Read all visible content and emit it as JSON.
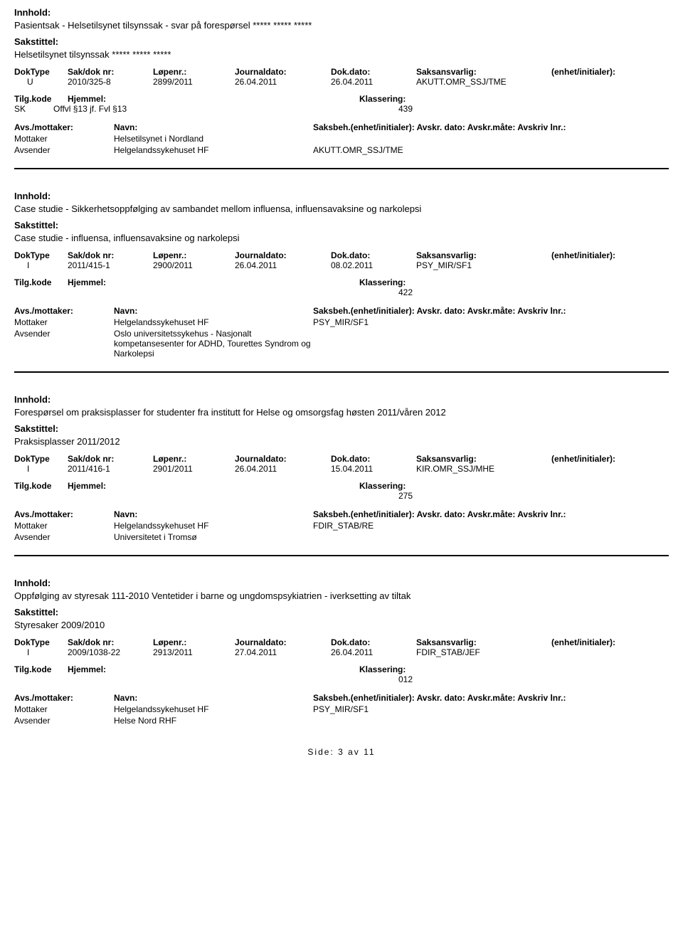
{
  "labels": {
    "innhold": "Innhold:",
    "sakstittel": "Sakstittel:",
    "doktype": "DokType",
    "sakdoknr": "Sak/dok nr:",
    "lopenr": "Løpenr.:",
    "journaldato": "Journaldato:",
    "dokdato": "Dok.dato:",
    "saksansvarlig": "Saksansvarlig:",
    "enhet": "(enhet/initialer):",
    "tilgkode": "Tilg.kode",
    "hjemmel": "Hjemmel:",
    "klassering": "Klassering:",
    "avsmottaker": "Avs./mottaker:",
    "navn": "Navn:",
    "saksbeh": "Saksbeh.(enhet/initialer): Avskr. dato:  Avskr.måte:  Avskriv lnr.:"
  },
  "records": [
    {
      "content": "Pasientsak - Helsetilsynet tilsynssak - svar på forespørsel ***** ***** *****",
      "title": "Helsetilsynet tilsynssak ***** ***** *****",
      "doktype": "U",
      "sak": "2010/325-8",
      "lopenr": "2899/2011",
      "journal": "26.04.2011",
      "dokdato": "26.04.2011",
      "saksans": "AKUTT.OMR_SSJ/TME",
      "tilgkode": "SK",
      "hjemmel": "Offvl §13 jf. Fvl §13",
      "klass": "439",
      "parties": [
        {
          "role": "Mottaker",
          "name": "Helsetilsynet i Nordland",
          "right": ""
        },
        {
          "role": "Avsender",
          "name": "Helgelandssykehuset HF",
          "right": "AKUTT.OMR_SSJ/TME"
        }
      ]
    },
    {
      "content": "Case studie - Sikkerhetsoppfølging av sambandet mellom influensa, influensavaksine og narkolepsi",
      "title": "Case studie - influensa, influensavaksine og narkolepsi",
      "doktype": "I",
      "sak": "2011/415-1",
      "lopenr": "2900/2011",
      "journal": "26.04.2011",
      "dokdato": "08.02.2011",
      "saksans": "PSY_MIR/SF1",
      "tilgkode": "",
      "hjemmel": "",
      "klass": "422",
      "parties": [
        {
          "role": "Mottaker",
          "name": "Helgelandssykehuset HF",
          "right": "PSY_MIR/SF1"
        },
        {
          "role": "Avsender",
          "name": "Oslo universitetssykehus - Nasjonalt kompetansesenter for ADHD, Tourettes Syndrom og Narkolepsi",
          "right": ""
        }
      ]
    },
    {
      "content": "Forespørsel om praksisplasser for studenter fra institutt for Helse og omsorgsfag høsten 2011/våren 2012",
      "title": "Praksisplasser 2011/2012",
      "doktype": "I",
      "sak": "2011/416-1",
      "lopenr": "2901/2011",
      "journal": "26.04.2011",
      "dokdato": "15.04.2011",
      "saksans": "KIR.OMR_SSJ/MHE",
      "tilgkode": "",
      "hjemmel": "",
      "klass": "275",
      "parties": [
        {
          "role": "Mottaker",
          "name": "Helgelandssykehuset HF",
          "right": "FDIR_STAB/RE"
        },
        {
          "role": "Avsender",
          "name": "Universitetet i Tromsø",
          "right": ""
        }
      ]
    },
    {
      "content": "Oppfølging av styresak 111-2010 Ventetider i barne og ungdomspsykiatrien - iverksetting av tiltak",
      "title": "Styresaker 2009/2010",
      "doktype": "I",
      "sak": "2009/1038-22",
      "lopenr": "2913/2011",
      "journal": "27.04.2011",
      "dokdato": "26.04.2011",
      "saksans": "FDIR_STAB/JEF",
      "tilgkode": "",
      "hjemmel": "",
      "klass": "012",
      "parties": [
        {
          "role": "Mottaker",
          "name": "Helgelandssykehuset HF",
          "right": "PSY_MIR/SF1"
        },
        {
          "role": "Avsender",
          "name": "Helse Nord RHF",
          "right": ""
        }
      ]
    }
  ],
  "footer": "Side: 3 av 11"
}
